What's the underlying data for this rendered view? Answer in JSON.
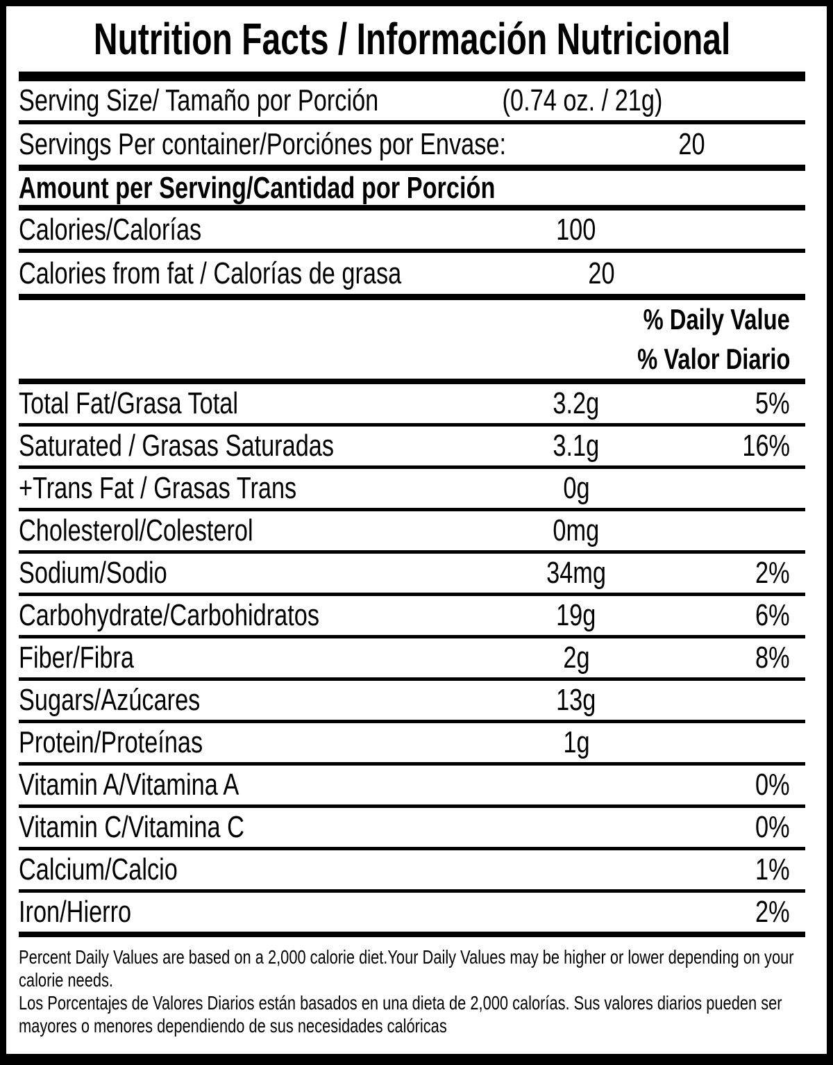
{
  "title": "Nutrition Facts / Información Nutricional",
  "serving": {
    "size_label": "Serving Size/ Tamaño por Porción",
    "size_value": "(0.74 oz. / 21g)",
    "per_container_label": "Servings Per container/Porciónes por Envase:",
    "per_container_value": "20"
  },
  "section_header": "Amount per Serving/Cantidad por Porción",
  "calories": {
    "label": "Calories/Calorías",
    "value": "100",
    "from_fat_label": "Calories from fat / Calorías de grasa",
    "from_fat_value": "20"
  },
  "daily_value_header": {
    "en": "% Daily Value",
    "es": "% Valor Diario"
  },
  "nutrients": [
    {
      "label": "Total Fat/Grasa Total",
      "amount": "3.2g",
      "dv": "5%"
    },
    {
      "label": "Saturated / Grasas Saturadas",
      "amount": "3.1g",
      "dv": "16%"
    },
    {
      "label": "+Trans Fat / Grasas Trans",
      "amount": "0g",
      "dv": ""
    },
    {
      "label": "Cholesterol/Colesterol",
      "amount": "0mg",
      "dv": ""
    },
    {
      "label": "Sodium/Sodio",
      "amount": "34mg",
      "dv": "2%"
    },
    {
      "label": "Carbohydrate/Carbohidratos",
      "amount": "19g",
      "dv": "6%"
    },
    {
      "label": "Fiber/Fibra",
      "amount": "2g",
      "dv": "8%"
    },
    {
      "label": "Sugars/Azúcares",
      "amount": "13g",
      "dv": ""
    },
    {
      "label": "Protein/Proteínas",
      "amount": "1g",
      "dv": ""
    },
    {
      "label": "Vitamin A/Vitamina A",
      "amount": "",
      "dv": "0%"
    },
    {
      "label": "Vitamin C/Vitamina C",
      "amount": "",
      "dv": "0%"
    },
    {
      "label": "Calcium/Calcio",
      "amount": "",
      "dv": "1%"
    },
    {
      "label": "Iron/Hierro",
      "amount": "",
      "dv": "2%"
    }
  ],
  "footnotes": {
    "en": "Percent Daily Values are based on a 2,000 calorie diet.Your Daily Values may be higher or lower depending on your calorie needs.",
    "es": "Los Porcentajes de Valores Diarios están basados en una dieta de 2,000 calorías. Sus valores diarios pueden ser mayores o menores dependiendo de sus necesidades calóricas"
  },
  "colors": {
    "ink": "#000000",
    "background": "#ffffff"
  }
}
